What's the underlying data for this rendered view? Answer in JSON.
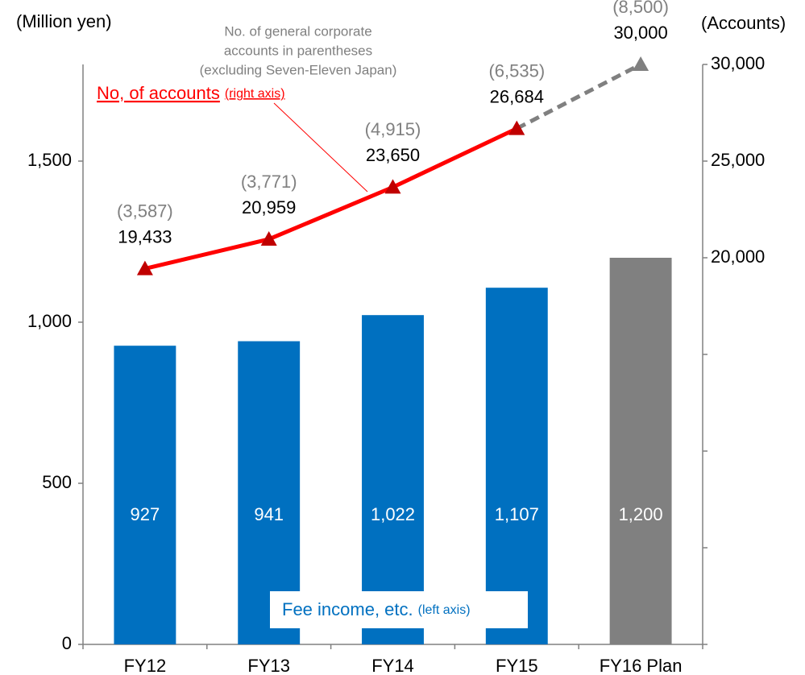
{
  "chart_data": {
    "type": "bar",
    "y_axis_label": "(Million yen)",
    "y2_axis_label": "(Accounts)",
    "categories": [
      "FY12",
      "FY13",
      "FY14",
      "FY15",
      "FY16 Plan"
    ],
    "series": [
      {
        "name": "Fee income, etc.",
        "name_note": "(left axis)",
        "type": "bar",
        "colors": [
          "#0070c0",
          "#0070c0",
          "#0070c0",
          "#0070c0",
          "#808080"
        ],
        "values": [
          927,
          941,
          1022,
          1107,
          1200
        ],
        "value_labels": [
          "927",
          "941",
          "1,022",
          "1,107",
          "1,200"
        ]
      },
      {
        "name": "No, of accounts",
        "name_note": "(right axis)",
        "type": "line",
        "axis": "y2",
        "color": "#ff0000",
        "plan_color": "#808080",
        "plan_from_index": 3,
        "values": [
          19433,
          20959,
          23650,
          26684,
          30000
        ],
        "value_labels": [
          "19,433",
          "20,959",
          "23,650",
          "26,684",
          "30,000"
        ]
      },
      {
        "name": "No. of general corporate accounts",
        "type": "label",
        "color": "#808080",
        "values": [
          3587,
          3771,
          4915,
          6535,
          8500
        ],
        "value_labels": [
          "(3,587)",
          "(3,771)",
          "(4,915)",
          "(6,535)",
          "(8,500)"
        ]
      }
    ],
    "annotation": [
      "No. of general corporate",
      "accounts in parentheses",
      "(excluding Seven-Eleven Japan)"
    ],
    "ylim": [
      0,
      1800
    ],
    "yticks": [
      0,
      500,
      {
        "value": 1000,
        "label": "1,000"
      },
      {
        "value": 1500,
        "label": "1,500"
      }
    ],
    "y2lim": [
      0,
      30000
    ],
    "y2ticks": [
      {
        "value": 20000,
        "label": "20,000"
      },
      {
        "value": 25000,
        "label": "25,000"
      },
      {
        "value": 30000,
        "label": "30,000"
      }
    ],
    "y2ticks_unlabeled": [
      0,
      5000,
      10000,
      15000
    ],
    "grid": false
  }
}
